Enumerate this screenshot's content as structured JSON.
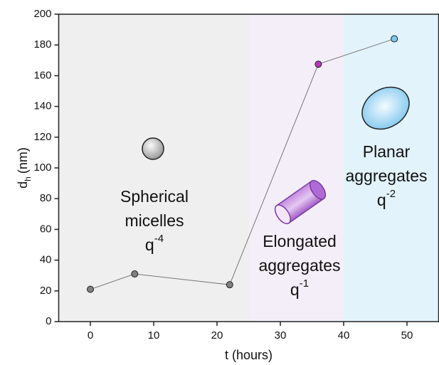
{
  "chart_data": {
    "type": "line",
    "xlabel": "t (hours)",
    "ylabel": {
      "base": "d",
      "subscript": "h",
      "unit": "(nm)"
    },
    "x": [
      0,
      7,
      22,
      36,
      48
    ],
    "series": [
      {
        "color": "#777777",
        "values": [
          21,
          31,
          24,
          167.5,
          184
        ],
        "point_colors": [
          "#808080",
          "#808080",
          "#808080",
          "#c030c8",
          "#7cc6ee"
        ]
      }
    ],
    "xlim": [
      -5,
      55
    ],
    "xticks": [
      0,
      10,
      20,
      30,
      40,
      50
    ],
    "ylim": [
      0,
      200
    ],
    "yticks": [
      0,
      20,
      40,
      60,
      80,
      100,
      120,
      140,
      160,
      180,
      200
    ],
    "regions": [
      {
        "xlim": [
          -5,
          25
        ],
        "color": "#efefef"
      },
      {
        "xlim": [
          25,
          40
        ],
        "color": "#f4eef9"
      },
      {
        "xlim": [
          40,
          55
        ],
        "color": "#e2f3fb"
      }
    ],
    "annotations": [
      {
        "lines": [
          "Spherical",
          "micelles"
        ],
        "base": "q",
        "exponent": "-4"
      },
      {
        "lines": [
          "Elongated",
          "aggregates"
        ],
        "base": "q",
        "exponent": "-1"
      },
      {
        "lines": [
          "Planar",
          "aggregates"
        ],
        "base": "q",
        "exponent": "-2"
      }
    ]
  }
}
